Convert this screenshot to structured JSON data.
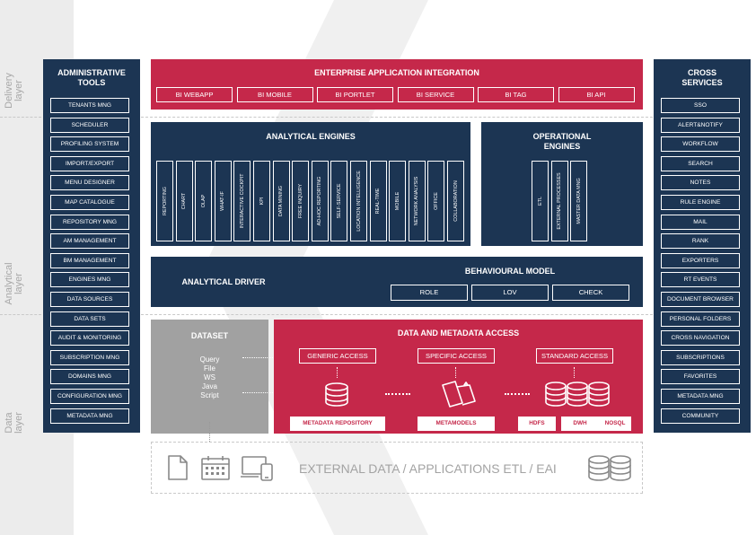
{
  "layers": {
    "delivery": "Delivery layer",
    "analytical": "Analytical layer",
    "data": "Data layer"
  },
  "admin": {
    "title": "ADMINISTRATIVE TOOLS",
    "items": [
      "TENANTS MNG",
      "SCHEDULER",
      "PROFILING SYSTEM",
      "IMPORT/EXPORT",
      "MENU DESIGNER",
      "MAP CATALOGUE",
      "REPOSITORY MNG",
      "AM MANAGEMENT",
      "BM MANAGEMENT",
      "ENGINES MNG",
      "DATA SOURCES",
      "DATA SETS",
      "AUDIT & MONITORING",
      "SUBSCRIPTION MNG",
      "DOMAINS MNG",
      "CONFIGURATION MNG",
      "METADATA MNG"
    ]
  },
  "cross": {
    "title": "CROSS SERVICES",
    "items": [
      "SSO",
      "ALERT&NOTIFY",
      "WORKFLOW",
      "SEARCH",
      "NOTES",
      "RULE ENGINE",
      "MAIL",
      "RANK",
      "EXPORTERS",
      "RT EVENTS",
      "DOCUMENT BROWSER",
      "PERSONAL FOLDERS",
      "CROSS NAVIGATION",
      "SUBSCRIPTIONS",
      "FAVORITES",
      "METADATA MNG",
      "COMMUNITY"
    ]
  },
  "eai": {
    "title": "ENTERPRISE APPLICATION INTEGRATION",
    "items": [
      "BI WEBAPP",
      "BI MOBILE",
      "BI PORTLET",
      "BI SERVICE",
      "BI TAG",
      "BI API"
    ]
  },
  "analytical_engines": {
    "title": "ANALYTICAL ENGINES",
    "items": [
      "REPORTING",
      "CHART",
      "OLAP",
      "WHAT-IF",
      "INTERACTIVE COCKPIT",
      "KPI",
      "DATA MINING",
      "FREE INQUIRY",
      "AD-HOC REPORTING",
      "SELF-SERVICE",
      "LOCATION INTELLIGENCE",
      "REAL-TIME",
      "MOBILE",
      "NETWORK ANALYSIS",
      "OFFICE",
      "COLLABORATION"
    ]
  },
  "operational_engines": {
    "title": "OPERATIONAL ENGINES",
    "items": [
      "ETL",
      "EXTERNAL PROCESSES",
      "MASTER DATA MNG"
    ]
  },
  "driver": {
    "title": "ANALYTICAL DRIVER",
    "behaviour_title": "BEHAVIOURAL MODEL",
    "items": [
      "ROLE",
      "LOV",
      "CHECK"
    ]
  },
  "dataset": {
    "title": "DATASET",
    "items": [
      "Query",
      "File",
      "WS",
      "Java",
      "Script"
    ]
  },
  "dma": {
    "title": "DATA AND METADATA ACCESS",
    "access": [
      "GENERIC ACCESS",
      "SPECIFIC ACCESS",
      "STANDARD ACCESS"
    ],
    "repo": [
      "METADATA REPOSITORY",
      "METAMODELS",
      "HDFS",
      "DWH",
      "NOSQL"
    ]
  },
  "external": {
    "label": "EXTERNAL DATA / APPLICATIONS ETL / EAI"
  },
  "icons": [
    "document-icon",
    "calendar-icon",
    "devices-icon",
    "database-icon"
  ]
}
